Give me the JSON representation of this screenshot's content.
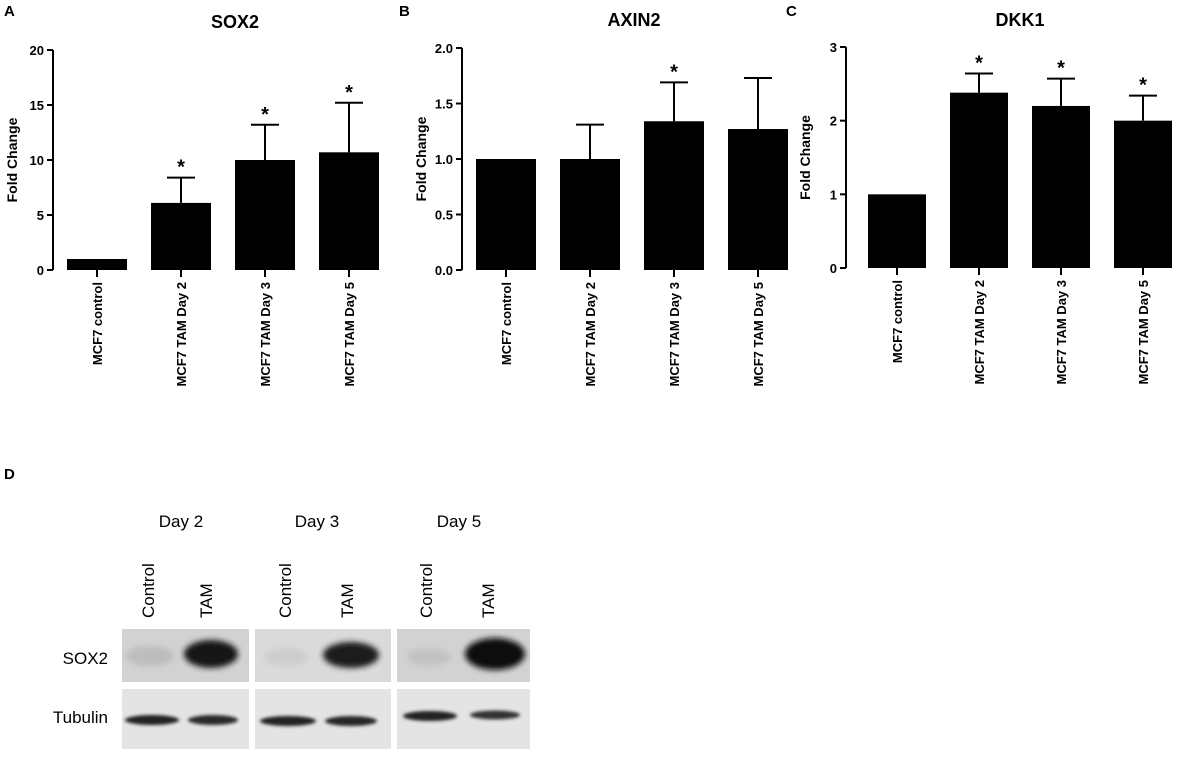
{
  "chart_data": [
    {
      "panel": "A",
      "type": "bar",
      "title": "SOX2",
      "ylabel": "Fold Change",
      "ylim": [
        0,
        20
      ],
      "yticks": [
        "0",
        "5",
        "10",
        "15",
        "20"
      ],
      "categories": [
        "MCF7 control",
        "MCF7 TAM Day 2",
        "MCF7 TAM Day 3",
        "MCF7 TAM Day 5"
      ],
      "values": [
        1.0,
        6.1,
        10.0,
        10.7
      ],
      "errors": [
        0,
        2.3,
        3.2,
        4.5
      ],
      "significance": [
        "",
        "*",
        "*",
        "*"
      ]
    },
    {
      "panel": "B",
      "type": "bar",
      "title": "AXIN2",
      "ylabel": "Fold Change",
      "ylim": [
        0,
        2.0
      ],
      "yticks": [
        "0.0",
        "0.5",
        "1.0",
        "1.5",
        "2.0"
      ],
      "categories": [
        "MCF7 control",
        "MCF7 TAM Day 2",
        "MCF7 TAM Day 3",
        "MCF7 TAM Day 5"
      ],
      "values": [
        1.0,
        1.0,
        1.34,
        1.27
      ],
      "errors": [
        0,
        0.31,
        0.35,
        0.46
      ],
      "significance": [
        "",
        "",
        "*",
        ""
      ]
    },
    {
      "panel": "C",
      "type": "bar",
      "title": "DKK1",
      "ylabel": "Fold Change",
      "ylim": [
        0,
        3
      ],
      "yticks": [
        "0",
        "1",
        "2",
        "3"
      ],
      "categories": [
        "MCF7 control",
        "MCF7 TAM Day 2",
        "MCF7 TAM Day 3",
        "MCF7 TAM Day 5"
      ],
      "values": [
        1.0,
        2.38,
        2.2,
        2.0
      ],
      "errors": [
        0,
        0.26,
        0.37,
        0.34
      ],
      "significance": [
        "",
        "*",
        "*",
        "*"
      ]
    }
  ],
  "blot": {
    "panel": "D",
    "days": [
      "Day 2",
      "Day 3",
      "Day 5"
    ],
    "lanes": [
      "Control",
      "TAM"
    ],
    "rows": [
      "SOX2",
      "Tubulin"
    ]
  }
}
